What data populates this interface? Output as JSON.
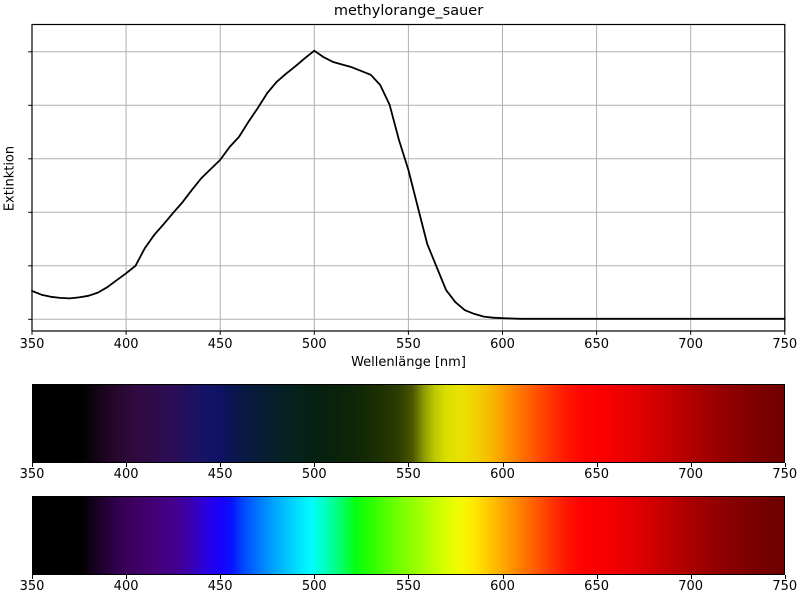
{
  "figure": {
    "title": "methylorange_sauer",
    "background": "#ffffff"
  },
  "axes_style": {
    "grid_color": "#b0b0b0",
    "spine_color": "#000000",
    "line_color": "#000000"
  },
  "x_ticks": [
    350,
    400,
    450,
    500,
    550,
    600,
    650,
    700,
    750
  ],
  "chart_data": {
    "type": "line",
    "title": "methylorange_sauer",
    "xlabel": "Wellenlänge [nm]",
    "ylabel": "Extinktion",
    "x_range": [
      350,
      750
    ],
    "x_ticks": [
      350,
      400,
      450,
      500,
      550,
      600,
      650,
      700,
      750
    ],
    "y_ticks_unlabeled": [
      0.1,
      0.2,
      0.3,
      0.4,
      0.5,
      0.6
    ],
    "ylim": [
      0.078,
      0.651
    ],
    "grid": true,
    "peak_nm": 500,
    "series": [
      {
        "name": "Extinktion",
        "color": "#000000",
        "x": [
          350,
          355,
          360,
          365,
          370,
          375,
          380,
          385,
          390,
          395,
          400,
          405,
          410,
          415,
          420,
          425,
          430,
          435,
          440,
          445,
          450,
          455,
          460,
          465,
          470,
          475,
          480,
          485,
          490,
          495,
          500,
          505,
          510,
          515,
          520,
          525,
          530,
          535,
          540,
          545,
          550,
          555,
          560,
          565,
          570,
          575,
          580,
          585,
          590,
          595,
          600,
          610,
          620,
          640,
          660,
          680,
          700,
          720,
          750
        ],
        "y": [
          0.153,
          0.146,
          0.142,
          0.14,
          0.139,
          0.141,
          0.144,
          0.15,
          0.16,
          0.173,
          0.186,
          0.2,
          0.233,
          0.258,
          0.278,
          0.299,
          0.319,
          0.342,
          0.364,
          0.381,
          0.398,
          0.422,
          0.441,
          0.469,
          0.495,
          0.523,
          0.544,
          0.559,
          0.573,
          0.588,
          0.602,
          0.59,
          0.581,
          0.576,
          0.571,
          0.564,
          0.557,
          0.538,
          0.501,
          0.435,
          0.379,
          0.31,
          0.241,
          0.198,
          0.155,
          0.132,
          0.117,
          0.11,
          0.105,
          0.103,
          0.102,
          0.101,
          0.101,
          0.101,
          0.101,
          0.101,
          0.101,
          0.101,
          0.101
        ]
      }
    ]
  },
  "strips": [
    {
      "name": "transmitted-spectrum",
      "x_range": [
        350,
        750
      ],
      "gradient": [
        {
          "nm": 350,
          "color": "#000000"
        },
        {
          "nm": 376,
          "color": "#010101"
        },
        {
          "nm": 385,
          "color": "#160418"
        },
        {
          "nm": 395,
          "color": "#28082e"
        },
        {
          "nm": 405,
          "color": "#300a40"
        },
        {
          "nm": 415,
          "color": "#2f0b4c"
        },
        {
          "nm": 425,
          "color": "#2a0d55"
        },
        {
          "nm": 433,
          "color": "#1f105e"
        },
        {
          "nm": 440,
          "color": "#171367"
        },
        {
          "nm": 448,
          "color": "#0f1266"
        },
        {
          "nm": 456,
          "color": "#0b1552"
        },
        {
          "nm": 464,
          "color": "#081a40"
        },
        {
          "nm": 472,
          "color": "#071d33"
        },
        {
          "nm": 480,
          "color": "#062029"
        },
        {
          "nm": 488,
          "color": "#052220"
        },
        {
          "nm": 496,
          "color": "#052117"
        },
        {
          "nm": 504,
          "color": "#062110"
        },
        {
          "nm": 512,
          "color": "#09230b"
        },
        {
          "nm": 520,
          "color": "#0e2607"
        },
        {
          "nm": 528,
          "color": "#152b04"
        },
        {
          "nm": 536,
          "color": "#1f3102"
        },
        {
          "nm": 544,
          "color": "#2c3b01"
        },
        {
          "nm": 552,
          "color": "#4a5500"
        },
        {
          "nm": 558,
          "color": "#8a9a00"
        },
        {
          "nm": 564,
          "color": "#bcc800"
        },
        {
          "nm": 570,
          "color": "#dcde00"
        },
        {
          "nm": 578,
          "color": "#e9e200"
        },
        {
          "nm": 586,
          "color": "#f0d200"
        },
        {
          "nm": 594,
          "color": "#f8b800"
        },
        {
          "nm": 602,
          "color": "#ff9600"
        },
        {
          "nm": 610,
          "color": "#ff7300"
        },
        {
          "nm": 618,
          "color": "#ff5200"
        },
        {
          "nm": 626,
          "color": "#ff3300"
        },
        {
          "nm": 634,
          "color": "#ff1800"
        },
        {
          "nm": 642,
          "color": "#ff0600"
        },
        {
          "nm": 652,
          "color": "#fb0000"
        },
        {
          "nm": 662,
          "color": "#f00000"
        },
        {
          "nm": 672,
          "color": "#e20000"
        },
        {
          "nm": 682,
          "color": "#d20000"
        },
        {
          "nm": 692,
          "color": "#c00000"
        },
        {
          "nm": 702,
          "color": "#ae0000"
        },
        {
          "nm": 712,
          "color": "#9d0000"
        },
        {
          "nm": 722,
          "color": "#8e0000"
        },
        {
          "nm": 732,
          "color": "#820000"
        },
        {
          "nm": 742,
          "color": "#780000"
        },
        {
          "nm": 750,
          "color": "#700000"
        }
      ]
    },
    {
      "name": "visible-spectrum",
      "x_range": [
        350,
        750
      ],
      "gradient": [
        {
          "nm": 350,
          "color": "#000000"
        },
        {
          "nm": 376,
          "color": "#010101"
        },
        {
          "nm": 385,
          "color": "#1b0128"
        },
        {
          "nm": 395,
          "color": "#33004e"
        },
        {
          "nm": 405,
          "color": "#3f0064"
        },
        {
          "nm": 415,
          "color": "#440076"
        },
        {
          "nm": 425,
          "color": "#43008c"
        },
        {
          "nm": 432,
          "color": "#3d00a6"
        },
        {
          "nm": 438,
          "color": "#3300c8"
        },
        {
          "nm": 444,
          "color": "#2600e8"
        },
        {
          "nm": 450,
          "color": "#1800fa"
        },
        {
          "nm": 456,
          "color": "#0a14ff"
        },
        {
          "nm": 462,
          "color": "#0048ff"
        },
        {
          "nm": 470,
          "color": "#0076ff"
        },
        {
          "nm": 478,
          "color": "#00a2ff"
        },
        {
          "nm": 486,
          "color": "#00c8ff"
        },
        {
          "nm": 492,
          "color": "#00e4ff"
        },
        {
          "nm": 498,
          "color": "#00fbff"
        },
        {
          "nm": 504,
          "color": "#00ffcc"
        },
        {
          "nm": 510,
          "color": "#00ff94"
        },
        {
          "nm": 516,
          "color": "#00ff55"
        },
        {
          "nm": 522,
          "color": "#06ff0e"
        },
        {
          "nm": 530,
          "color": "#2bff00"
        },
        {
          "nm": 538,
          "color": "#52ff00"
        },
        {
          "nm": 546,
          "color": "#77ff00"
        },
        {
          "nm": 554,
          "color": "#99ff00"
        },
        {
          "nm": 562,
          "color": "#baff00"
        },
        {
          "nm": 570,
          "color": "#d9ff00"
        },
        {
          "nm": 578,
          "color": "#f4fa00"
        },
        {
          "nm": 586,
          "color": "#ffe400"
        },
        {
          "nm": 594,
          "color": "#ffc300"
        },
        {
          "nm": 602,
          "color": "#ffa100"
        },
        {
          "nm": 610,
          "color": "#ff7d00"
        },
        {
          "nm": 618,
          "color": "#ff5900"
        },
        {
          "nm": 626,
          "color": "#ff3600"
        },
        {
          "nm": 634,
          "color": "#ff1600"
        },
        {
          "nm": 642,
          "color": "#ff0200"
        },
        {
          "nm": 652,
          "color": "#f80000"
        },
        {
          "nm": 662,
          "color": "#ef0000"
        },
        {
          "nm": 672,
          "color": "#e00000"
        },
        {
          "nm": 682,
          "color": "#cd0000"
        },
        {
          "nm": 692,
          "color": "#b90000"
        },
        {
          "nm": 702,
          "color": "#a60000"
        },
        {
          "nm": 712,
          "color": "#960000"
        },
        {
          "nm": 722,
          "color": "#880000"
        },
        {
          "nm": 732,
          "color": "#7c0000"
        },
        {
          "nm": 742,
          "color": "#730000"
        },
        {
          "nm": 750,
          "color": "#6d0000"
        }
      ]
    }
  ]
}
